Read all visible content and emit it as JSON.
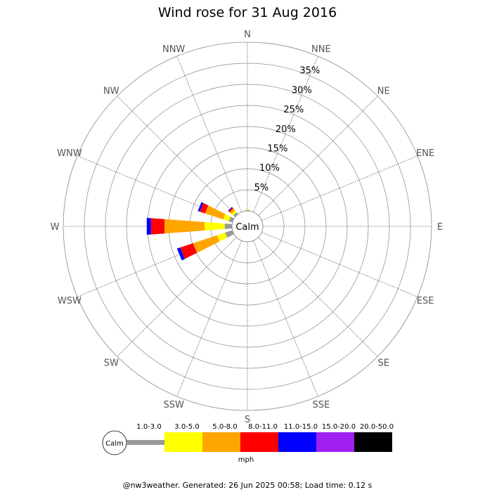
{
  "chart_data": {
    "type": "windrose",
    "title": "Wind rose for 31 Aug 2016",
    "directions": [
      "N",
      "NNE",
      "NE",
      "ENE",
      "E",
      "ESE",
      "SE",
      "SSE",
      "S",
      "SSW",
      "SW",
      "WSW",
      "W",
      "WNW",
      "NW",
      "NNW"
    ],
    "radial_ticks": [
      "5%",
      "10%",
      "15%",
      "20%",
      "25%",
      "30%",
      "35%"
    ],
    "radial_tick_values": [
      5,
      10,
      15,
      20,
      25,
      30,
      35
    ],
    "rmax": 40,
    "calm_label": "Calm",
    "speed_bins": [
      {
        "label": "1.0-3.0",
        "color": "#999999"
      },
      {
        "label": "3.0-5.0",
        "color": "#ffff00"
      },
      {
        "label": "5.0-8.0",
        "color": "#ffa500"
      },
      {
        "label": "8.0-11.0",
        "color": "#ff0000"
      },
      {
        "label": "11.0-15.0",
        "color": "#0000ff"
      },
      {
        "label": "15.0-20.0",
        "color": "#a020f0"
      },
      {
        "label": "20.0-50.0",
        "color": "#000000"
      }
    ],
    "unit": "mph",
    "frequencies": [
      [
        0.2,
        0.1,
        0.0,
        0.0,
        0.0,
        0.0,
        0.0
      ],
      [
        0.0,
        0.0,
        0.0,
        0.0,
        0.0,
        0.0,
        0.0
      ],
      [
        0.0,
        0.0,
        0.0,
        0.0,
        0.0,
        0.0,
        0.0
      ],
      [
        0.0,
        0.0,
        0.0,
        0.0,
        0.0,
        0.0,
        0.0
      ],
      [
        0.0,
        0.0,
        0.0,
        0.0,
        0.0,
        0.0,
        0.0
      ],
      [
        0.0,
        0.0,
        0.0,
        0.0,
        0.0,
        0.0,
        0.0
      ],
      [
        0.0,
        0.0,
        0.0,
        0.0,
        0.0,
        0.0,
        0.0
      ],
      [
        0.0,
        0.0,
        0.0,
        0.0,
        0.0,
        0.0,
        0.0
      ],
      [
        0.0,
        0.0,
        0.0,
        0.0,
        0.0,
        0.0,
        0.0
      ],
      [
        0.0,
        0.0,
        0.0,
        0.0,
        0.0,
        0.0,
        0.0
      ],
      [
        0.0,
        0.0,
        0.0,
        0.0,
        0.0,
        0.0,
        0.0
      ],
      [
        1.8,
        2.0,
        6.0,
        3.2,
        0.8,
        0.0,
        0.0
      ],
      [
        1.7,
        4.8,
        9.5,
        3.2,
        1.0,
        0.0,
        0.0
      ],
      [
        0.9,
        1.4,
        4.5,
        1.3,
        0.5,
        0.0,
        0.0
      ],
      [
        0.5,
        0.6,
        0.6,
        0.3,
        0.2,
        0.0,
        0.0
      ],
      [
        0.0,
        0.0,
        0.0,
        0.0,
        0.0,
        0.0,
        0.0
      ]
    ]
  },
  "footer": "@nw3weather. Generated: 26 Jun 2025 00:58; Load time: 0.12 s"
}
